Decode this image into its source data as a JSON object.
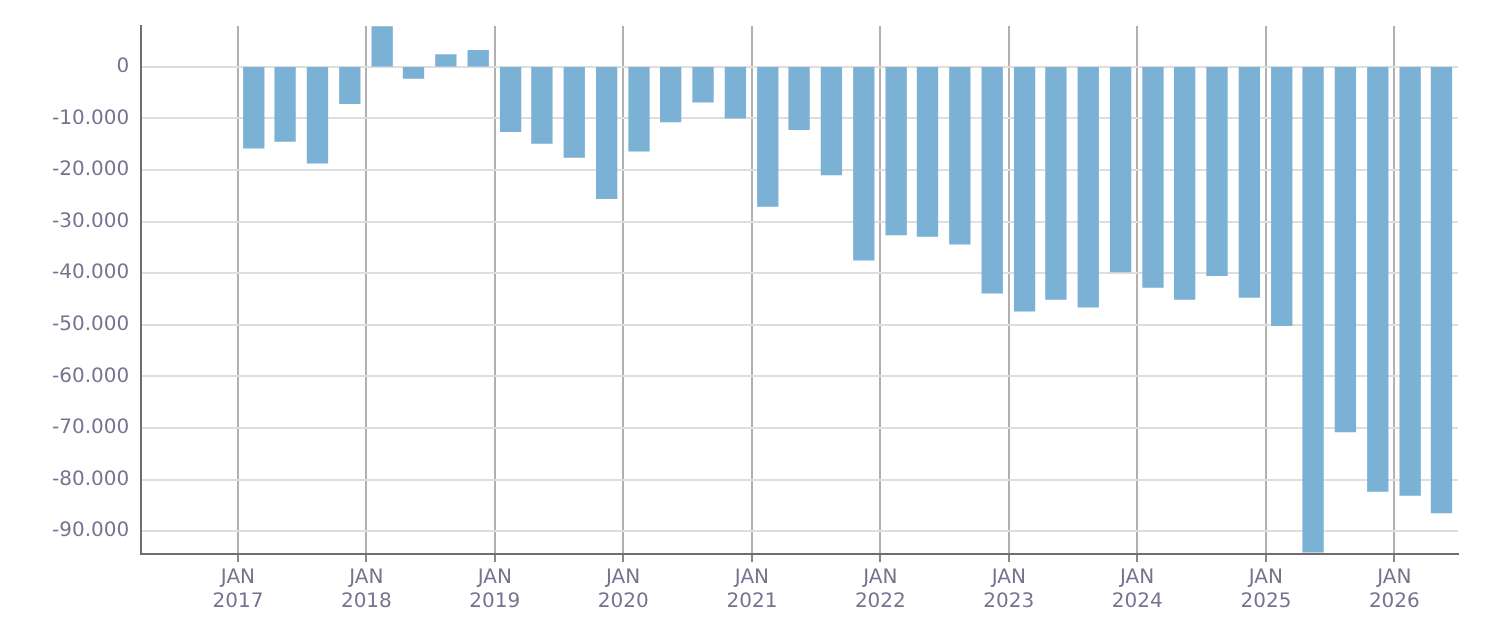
{
  "chart_data": {
    "type": "bar",
    "color": "#7ab1d4",
    "x": [
      "2017-02-15",
      "2017-05-15",
      "2017-08-15",
      "2017-11-15",
      "2018-02-15",
      "2018-05-15",
      "2018-08-15",
      "2018-11-15",
      "2019-02-15",
      "2019-05-15",
      "2019-08-15",
      "2019-11-15",
      "2020-02-15",
      "2020-05-15",
      "2020-08-15",
      "2020-11-15",
      "2021-02-15",
      "2021-05-15",
      "2021-08-15",
      "2021-11-15",
      "2022-02-15",
      "2022-05-15",
      "2022-08-15",
      "2022-11-15",
      "2023-02-15",
      "2023-05-15",
      "2023-08-15",
      "2023-11-15",
      "2024-02-15",
      "2024-05-15",
      "2024-08-15",
      "2024-11-15",
      "2025-02-15",
      "2025-05-15",
      "2025-08-15",
      "2025-11-15",
      "2026-02-15",
      "2026-05-15"
    ],
    "values": [
      -15700,
      -14400,
      -18600,
      -7100,
      7700,
      -2200,
      2300,
      3100,
      -12500,
      -14800,
      -17500,
      -25500,
      -16300,
      -10600,
      -6800,
      -9900,
      -27000,
      -12100,
      -20900,
      -37400,
      -32500,
      -32800,
      -34300,
      -43800,
      -47300,
      -45000,
      -46500,
      -39700,
      -42700,
      -45000,
      -40400,
      -44600,
      -50100,
      -94000,
      -70700,
      -82200,
      -83000,
      -86400
    ],
    "xlim": [
      "2016-04-01",
      "2026-07-01"
    ],
    "xticks": [
      {
        "value": "2017-01",
        "label": "JAN\n2017"
      },
      {
        "value": "2018-01",
        "label": "JAN\n2018"
      },
      {
        "value": "2019-01",
        "label": "JAN\n2019"
      },
      {
        "value": "2020-01",
        "label": "JAN\n2020"
      },
      {
        "value": "2021-01",
        "label": "JAN\n2021"
      },
      {
        "value": "2022-01",
        "label": "JAN\n2022"
      },
      {
        "value": "2023-01",
        "label": "JAN\n2023"
      },
      {
        "value": "2024-01",
        "label": "JAN\n2024"
      },
      {
        "value": "2025-01",
        "label": "JAN\n2025"
      },
      {
        "value": "2026-01",
        "label": "JAN\n2026"
      }
    ],
    "ylim": [
      -94400,
      7900
    ],
    "yticks": [
      {
        "value": 0,
        "label": "0"
      },
      {
        "value": -10000,
        "label": "-10.000"
      },
      {
        "value": -20000,
        "label": "-20.000"
      },
      {
        "value": -30000,
        "label": "-30.000"
      },
      {
        "value": -40000,
        "label": "-40.000"
      },
      {
        "value": -50000,
        "label": "-50.000"
      },
      {
        "value": -60000,
        "label": "-60.000"
      },
      {
        "value": -70000,
        "label": "-70.000"
      },
      {
        "value": -80000,
        "label": "-80.000"
      },
      {
        "value": -90000,
        "label": "-90.000"
      }
    ],
    "grid": true,
    "legend": false
  }
}
